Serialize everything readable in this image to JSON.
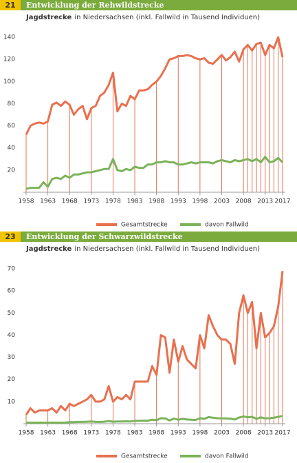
{
  "chart_data": [
    {
      "type": "line",
      "number": "21",
      "title": "Entwicklung der Rehwildstrecke",
      "subtitle": [
        "Jagdstrecke",
        "in Niedersachsen (inkl. Fallwild in Tausend Individuen)"
      ],
      "x": [
        1958,
        1959,
        1960,
        1961,
        1962,
        1963,
        1964,
        1965,
        1966,
        1967,
        1968,
        1969,
        1970,
        1971,
        1972,
        1973,
        1974,
        1975,
        1976,
        1977,
        1978,
        1979,
        1980,
        1981,
        1982,
        1983,
        1984,
        1985,
        1986,
        1987,
        1988,
        1989,
        1990,
        1991,
        1992,
        1993,
        1994,
        1995,
        1996,
        1997,
        1998,
        1999,
        2000,
        2001,
        2002,
        2003,
        2004,
        2005,
        2006,
        2007,
        2008,
        2009,
        2010,
        2011,
        2012,
        2013,
        2014,
        2015,
        2016,
        2017
      ],
      "xlim": [
        1958,
        2017
      ],
      "xticks": [
        1958,
        1963,
        1968,
        1973,
        1978,
        1983,
        1988,
        1993,
        1998,
        2003,
        2008,
        2013,
        2017
      ],
      "ylim": [
        0,
        150
      ],
      "yticks": [
        20,
        40,
        60,
        80,
        100,
        120,
        140
      ],
      "grid": false,
      "legend": "bottom",
      "series": [
        {
          "name": "Gesamtstrecke",
          "color": "#e8704e",
          "values": [
            52,
            60,
            62,
            63,
            62,
            64,
            79,
            81,
            78,
            82,
            79,
            70,
            75,
            78,
            66,
            76,
            78,
            87,
            90,
            97,
            108,
            73,
            80,
            78,
            87,
            84,
            92,
            92,
            93,
            97,
            100,
            105,
            112,
            120,
            121,
            123,
            123,
            124,
            123,
            121,
            120,
            121,
            117,
            116,
            120,
            124,
            119,
            122,
            127,
            118,
            129,
            133,
            128,
            134,
            135,
            124,
            133,
            130,
            140,
            122
          ]
        },
        {
          "name": "davon Fallwild",
          "color": "#7ab35a",
          "values": [
            3,
            4,
            4,
            4,
            9,
            5,
            12,
            13,
            12,
            15,
            13,
            16,
            16,
            17,
            18,
            18,
            19,
            20,
            21,
            21,
            30,
            20,
            19,
            21,
            20,
            23,
            22,
            22,
            25,
            25,
            27,
            27,
            28,
            27,
            27,
            25,
            25,
            26,
            27,
            26,
            27,
            27,
            27,
            26,
            28,
            29,
            28,
            27,
            29,
            28,
            29,
            30,
            28,
            30,
            27,
            32,
            27,
            28,
            31,
            27
          ]
        }
      ]
    },
    {
      "type": "line",
      "number": "23",
      "title": "Entwicklung der Schwarzwildstrecke",
      "subtitle": [
        "Jagdstrecke",
        "in Niedersachsen (inkl. Fallwild in Tausend Individuen)"
      ],
      "x": [
        1958,
        1959,
        1960,
        1961,
        1962,
        1963,
        1964,
        1965,
        1966,
        1967,
        1968,
        1969,
        1970,
        1971,
        1972,
        1973,
        1974,
        1975,
        1976,
        1977,
        1978,
        1979,
        1980,
        1981,
        1982,
        1983,
        1984,
        1985,
        1986,
        1987,
        1988,
        1989,
        1990,
        1991,
        1992,
        1993,
        1994,
        1995,
        1996,
        1997,
        1998,
        1999,
        2000,
        2001,
        2002,
        2003,
        2004,
        2005,
        2006,
        2007,
        2008,
        2009,
        2010,
        2011,
        2012,
        2013,
        2014,
        2015,
        2016,
        2017
      ],
      "xlim": [
        1958,
        2017
      ],
      "xticks": [
        1958,
        1963,
        1968,
        1973,
        1978,
        1983,
        1988,
        1993,
        1998,
        2003,
        2008,
        2013,
        2017
      ],
      "ylim": [
        0,
        75
      ],
      "yticks": [
        10,
        20,
        30,
        40,
        50,
        60,
        70
      ],
      "grid": false,
      "legend": "bottom",
      "series": [
        {
          "name": "Gesamtstrecke",
          "color": "#e8704e",
          "values": [
            4,
            7,
            5,
            6,
            6,
            6,
            7,
            5,
            8,
            6,
            9,
            8,
            9,
            10,
            11,
            13,
            10,
            10,
            11,
            17,
            10,
            12,
            11,
            13,
            11,
            19,
            19,
            19,
            19,
            26,
            22,
            40,
            39,
            23,
            38,
            28,
            35,
            29,
            27,
            25,
            40,
            34,
            49,
            44,
            40,
            38,
            38,
            36,
            27,
            50,
            58,
            50,
            55,
            34,
            50,
            39,
            41,
            44,
            53,
            69
          ]
        },
        {
          "name": "davon Fallwild",
          "color": "#7ab35a",
          "values": [
            0.5,
            0.5,
            0.5,
            0.5,
            0.5,
            0.5,
            0.5,
            0.5,
            0.5,
            0.5,
            0.7,
            0.7,
            0.8,
            0.8,
            0.9,
            1,
            0.8,
            0.8,
            0.9,
            1.2,
            0.9,
            1,
            1,
            1.1,
            1,
            1.3,
            1.3,
            1.4,
            1.4,
            1.8,
            1.6,
            2.5,
            2.4,
            1.5,
            2.3,
            1.8,
            2.2,
            1.9,
            1.8,
            1.7,
            2.5,
            2.2,
            3,
            2.7,
            2.5,
            2.4,
            2.4,
            2.3,
            1.9,
            2.8,
            3.3,
            2.9,
            3.1,
            2.2,
            2.9,
            2.4,
            2.5,
            2.7,
            3.1,
            3.5
          ]
        }
      ]
    }
  ]
}
